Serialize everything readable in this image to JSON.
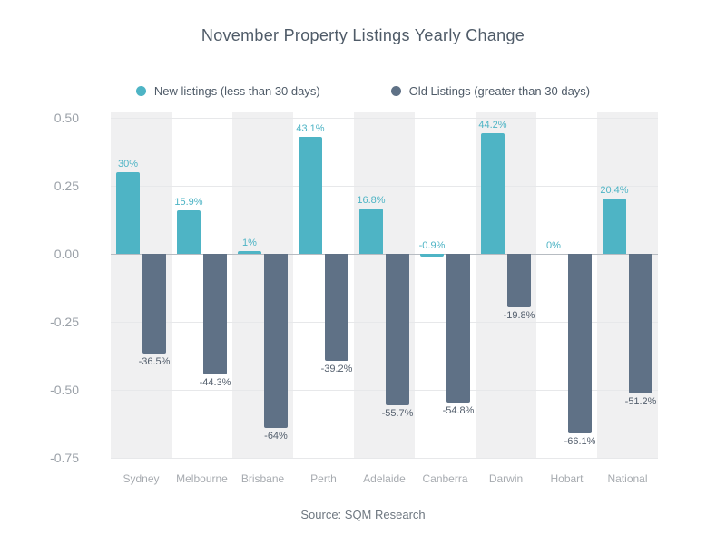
{
  "title": "November Property Listings Yearly Change",
  "source_note": "Source: SQM Research",
  "legend": {
    "items": [
      {
        "label": "New listings (less than 30 days)",
        "color": "#4eb4c5"
      },
      {
        "label": "Old Listings (greater than 30 days)",
        "color": "#5f7186"
      }
    ]
  },
  "chart_data": {
    "type": "bar",
    "title": "November Property Listings Yearly Change",
    "categories": [
      "Sydney",
      "Melbourne",
      "Brisbane",
      "Perth",
      "Adelaide",
      "Canberra",
      "Darwin",
      "Hobart",
      "National"
    ],
    "series": [
      {
        "name": "New listings (less than 30 days)",
        "color": "#4eb4c5",
        "unit": "%",
        "values": [
          30,
          15.9,
          1,
          43.1,
          16.8,
          -0.9,
          44.2,
          0,
          20.4
        ],
        "labels": [
          "30%",
          "15.9%",
          "1%",
          "43.1%",
          "16.8%",
          "-0.9%",
          "44.2%",
          "0%",
          "20.4%"
        ]
      },
      {
        "name": "Old Listings (greater than 30 days)",
        "color": "#5f7186",
        "unit": "%",
        "values": [
          -36.5,
          -44.3,
          -64,
          -39.2,
          -55.7,
          -54.8,
          -19.8,
          -66.1,
          -51.2
        ],
        "labels": [
          "-36.5%",
          "-44.3%",
          "-64%",
          "-39.2%",
          "-55.7%",
          "-54.8%",
          "-19.8%",
          "-66.1%",
          "-51.2%"
        ]
      }
    ],
    "xlabel": "",
    "ylabel": "",
    "y_axis": {
      "range_pct": [
        -75,
        50
      ],
      "ticks": [
        {
          "label": "0.50",
          "value": 50
        },
        {
          "label": "0.25",
          "value": 25
        },
        {
          "label": "0.00",
          "value": 0
        },
        {
          "label": "-0.25",
          "value": -25
        },
        {
          "label": "-0.50",
          "value": -50
        },
        {
          "label": "-0.75",
          "value": -75
        }
      ]
    },
    "grid": true,
    "legend_position": "top",
    "plot_bands_alternate": true
  },
  "colors": {
    "background": "#ffffff",
    "band": "#f0f0f1",
    "gridline": "#e7e8ea",
    "zero_line": "#b7bcc2",
    "axis_label": "#9ba1a8",
    "category_label": "#a7abb0",
    "negative_label": "#55606e",
    "title": "#4f5b68",
    "legend_text": "#4f5b68",
    "source_text": "#6e7780"
  }
}
